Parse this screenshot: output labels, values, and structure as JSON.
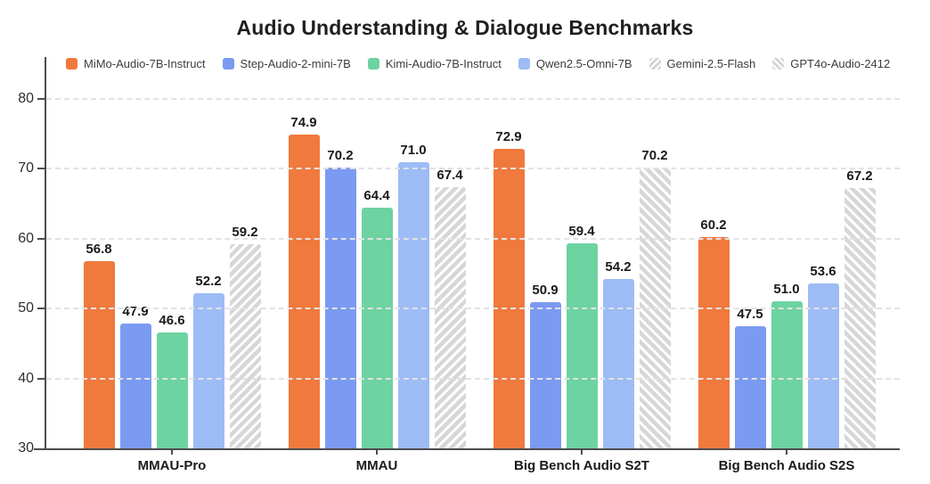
{
  "chart_data": {
    "type": "bar",
    "title": "Audio Understanding & Dialogue Benchmarks",
    "categories": [
      "MMAU-Pro",
      "MMAU",
      "Big Bench Audio S2T",
      "Big Bench Audio S2S"
    ],
    "series": [
      {
        "name": "MiMo-Audio-7B-Instruct",
        "color": "#F0793D",
        "hatch": null,
        "values": [
          56.8,
          74.9,
          72.9,
          60.2
        ]
      },
      {
        "name": "Step-Audio-2-mini-7B",
        "color": "#7B9AF2",
        "hatch": null,
        "values": [
          47.9,
          70.2,
          50.9,
          47.5
        ]
      },
      {
        "name": "Kimi-Audio-7B-Instruct",
        "color": "#6DD3A1",
        "hatch": null,
        "values": [
          46.6,
          64.4,
          59.4,
          51.0
        ]
      },
      {
        "name": "Qwen2.5-Omni-7B",
        "color": "#9DBCF6",
        "hatch": null,
        "values": [
          52.2,
          71.0,
          54.2,
          53.6
        ]
      },
      {
        "name": "Gemini-2.5-Flash",
        "color": "#D7D7D7",
        "hatch": "/",
        "values": [
          59.2,
          67.4,
          null,
          null
        ]
      },
      {
        "name": "GPT4o-Audio-2412",
        "color": "#D7D7D7",
        "hatch": "\\",
        "values": [
          null,
          null,
          70.2,
          67.2
        ]
      }
    ],
    "xlabel": "",
    "ylabel": "",
    "ylim": [
      30,
      86
    ],
    "yticks": [
      30,
      40,
      50,
      60,
      70,
      80
    ],
    "grid": "horizontal-dashed",
    "legend_position": "top",
    "value_label_decimals": 1,
    "colors": {
      "axis": "#4d4d4d",
      "gridline": "#e2e2e2",
      "title_text": "#1f1f1f",
      "label_text": "#1a1a1a",
      "tick_text": "#2e2e2e",
      "legend_text": "#3c3c3c",
      "background": "#ffffff"
    }
  }
}
